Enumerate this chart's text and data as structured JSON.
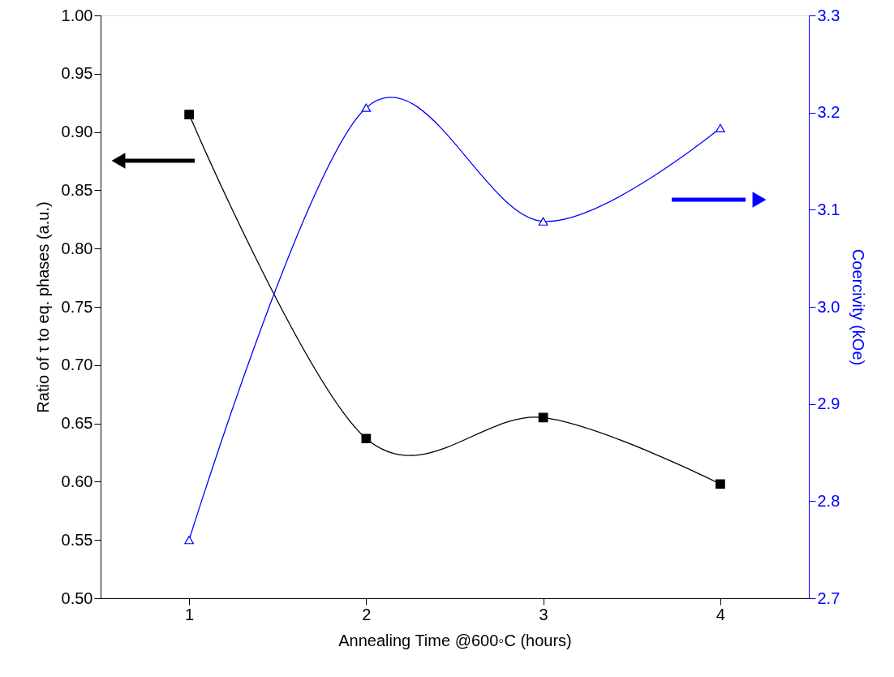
{
  "chart_data": {
    "type": "line",
    "xlabel": "Annealing Time @600◦C (hours)",
    "ylabel": "Ratio of τ to eq. phases (a.u.)",
    "y2label": "Coercivity (kOe)",
    "x": [
      1,
      2,
      3,
      4
    ],
    "xlim": [
      0.5,
      4.5
    ],
    "xticks": [
      1,
      2,
      3,
      4
    ],
    "ylim": [
      0.5,
      1.0
    ],
    "yticks": [
      {
        "value": 0.5,
        "label": "0.50"
      },
      {
        "value": 0.55,
        "label": "0.55"
      },
      {
        "value": 0.6,
        "label": "0.60"
      },
      {
        "value": 0.65,
        "label": "0.65"
      },
      {
        "value": 0.7,
        "label": "0.70"
      },
      {
        "value": 0.75,
        "label": "0.75"
      },
      {
        "value": 0.8,
        "label": "0.80"
      },
      {
        "value": 0.85,
        "label": "0.85"
      },
      {
        "value": 0.9,
        "label": "0.90"
      },
      {
        "value": 0.95,
        "label": "0.95"
      },
      {
        "value": 1.0,
        "label": "1.00"
      }
    ],
    "y2lim": [
      2.7,
      3.3
    ],
    "y2ticks": [
      2.7,
      2.8,
      2.9,
      {
        "value": 3.0,
        "label": "3.0"
      },
      3.1,
      3.2,
      3.3
    ],
    "series": [
      {
        "color": "#000000",
        "values": [
          0.915,
          0.637,
          0.655,
          0.598
        ],
        "marker": "square"
      },
      {
        "color": "#0000ff",
        "values": [
          2.76,
          3.205,
          3.088,
          3.184
        ],
        "marker": "triangle",
        "axis": "y2"
      }
    ],
    "grid": false
  }
}
